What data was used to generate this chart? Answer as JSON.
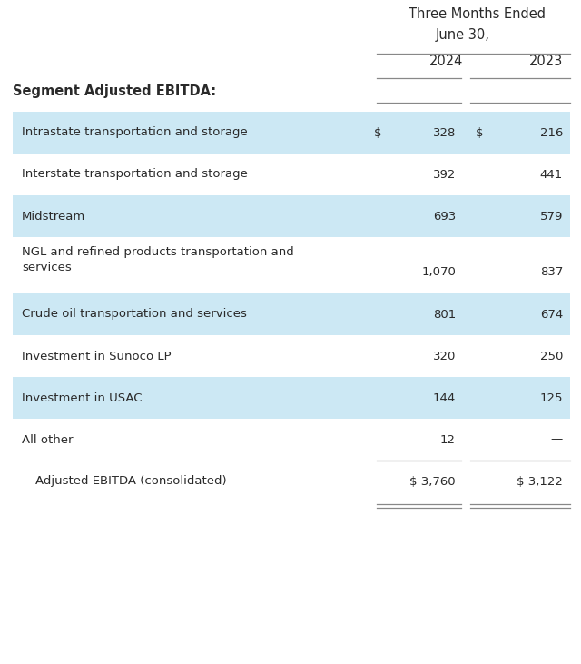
{
  "header_line1": "Three Months Ended",
  "header_line2": "June 30,",
  "col2024": "2024",
  "col2023": "2023",
  "section_header": "Segment Adjusted EBITDA:",
  "rows": [
    {
      "label": "Intrastate transportation and storage",
      "val2024": "328",
      "val2023": "216",
      "dollar2024": true,
      "dollar2023": true,
      "shaded": true,
      "two_line": false
    },
    {
      "label": "Interstate transportation and storage",
      "val2024": "392",
      "val2023": "441",
      "dollar2024": false,
      "dollar2023": false,
      "shaded": false,
      "two_line": false
    },
    {
      "label": "Midstream",
      "val2024": "693",
      "val2023": "579",
      "dollar2024": false,
      "dollar2023": false,
      "shaded": true,
      "two_line": false
    },
    {
      "label": "NGL and refined products transportation and\nservices",
      "val2024": "1,070",
      "val2023": "837",
      "dollar2024": false,
      "dollar2023": false,
      "shaded": false,
      "two_line": true
    },
    {
      "label": "Crude oil transportation and services",
      "val2024": "801",
      "val2023": "674",
      "dollar2024": false,
      "dollar2023": false,
      "shaded": true,
      "two_line": false
    },
    {
      "label": "Investment in Sunoco LP",
      "val2024": "320",
      "val2023": "250",
      "dollar2024": false,
      "dollar2023": false,
      "shaded": false,
      "two_line": false
    },
    {
      "label": "Investment in USAC",
      "val2024": "144",
      "val2023": "125",
      "dollar2024": false,
      "dollar2023": false,
      "shaded": true,
      "two_line": false
    },
    {
      "label": "All other",
      "val2024": "12",
      "val2023": "—",
      "dollar2024": false,
      "dollar2023": false,
      "shaded": false,
      "two_line": false
    }
  ],
  "total_row": {
    "label": "Adjusted EBITDA (consolidated)",
    "val2024": "$ 3,760",
    "val2023": "$ 3,122"
  },
  "shaded_color": "#cce8f4",
  "bg_color": "#ffffff",
  "text_color": "#2a2a2a",
  "line_color": "#888888",
  "font_size": 9.5,
  "header_font_size": 10.5,
  "bold_font_size": 10.5
}
